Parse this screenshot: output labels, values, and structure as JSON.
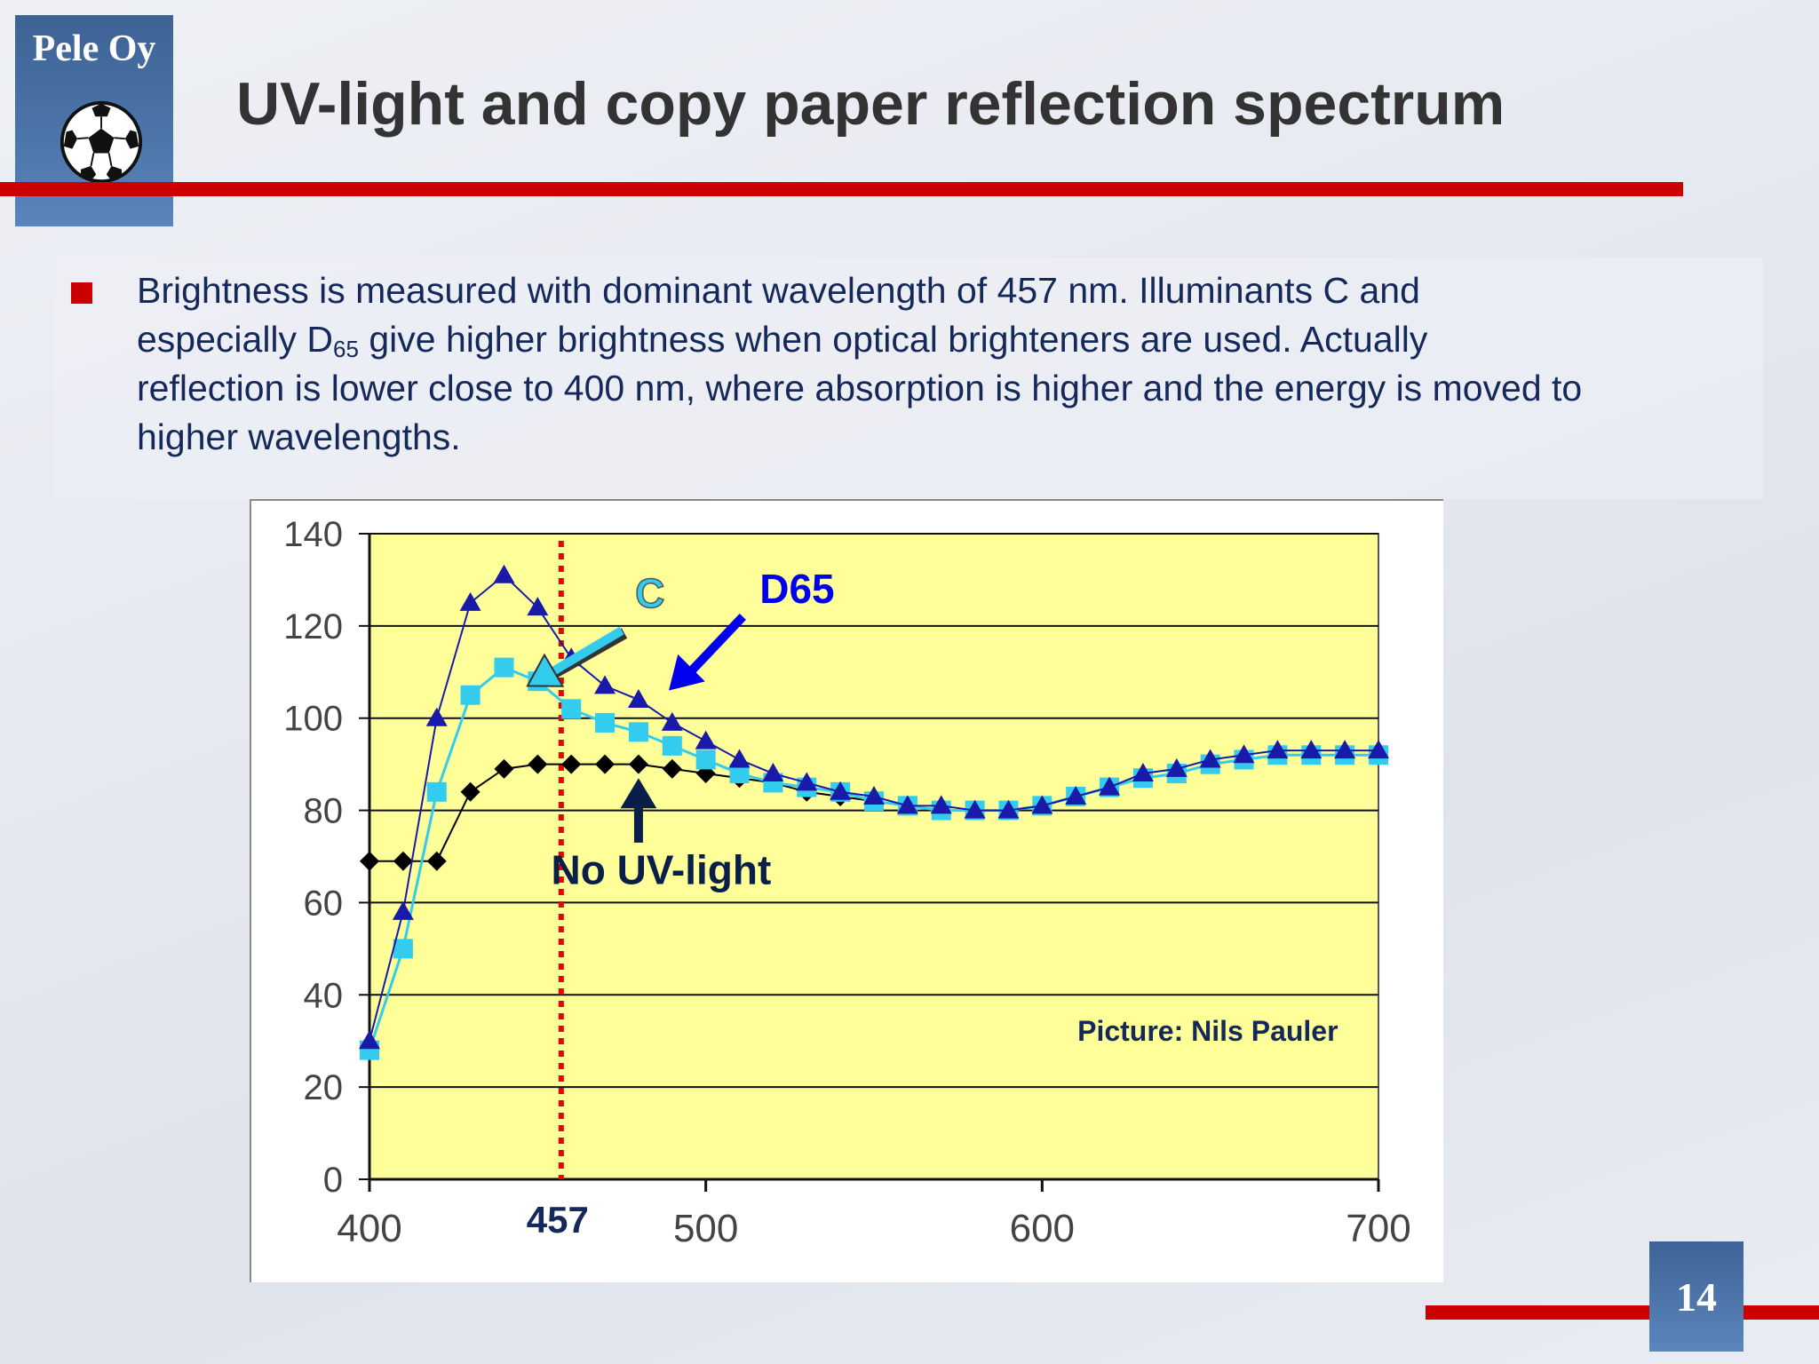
{
  "logo": {
    "text": "Pele Oy",
    "icon": "soccer-ball-icon"
  },
  "title": "UV-light and copy paper reflection spectrum",
  "bullet": {
    "line1": "Brightness is measured with dominant wavelength of 457 nm. Illuminants C and",
    "line2_pre": "especially D",
    "line2_sub": "65",
    "line2_post": " give higher brightness when optical brighteners are used. Actually",
    "line3": "reflection is lower close to 400 nm, where absorption is higher and the energy is moved to",
    "line4": "higher wavelengths."
  },
  "page_number": "14",
  "colors": {
    "accent_red": "#cc0000",
    "brand_blue": "#4a72a6",
    "title_text": "#333333",
    "body_text": "#14285a",
    "plot_background": "#ffff99",
    "series_no_uv": "#000000",
    "series_c": "#33ccee",
    "series_d65": "#1a1aaa",
    "marker_line": "#ee0000",
    "arrow_c": "#33ccee",
    "arrow_d65": "#0000ee",
    "arrow_no_uv": "#0a1e4a"
  },
  "chart_data": {
    "type": "line",
    "x": [
      400,
      410,
      420,
      430,
      440,
      450,
      460,
      470,
      480,
      490,
      500,
      510,
      520,
      530,
      540,
      550,
      560,
      570,
      580,
      590,
      600,
      610,
      620,
      630,
      640,
      650,
      660,
      670,
      680,
      690,
      700
    ],
    "series": [
      {
        "name": "No UV-light",
        "marker": "diamond",
        "values": [
          69,
          69,
          69,
          84,
          89,
          90,
          90,
          90,
          90,
          89,
          88,
          87,
          86,
          84,
          83,
          82,
          81,
          80,
          80,
          80,
          81,
          83,
          85,
          87,
          88,
          90,
          91,
          92,
          92,
          92,
          92
        ]
      },
      {
        "name": "C",
        "marker": "square",
        "values": [
          28,
          50,
          84,
          105,
          111,
          108,
          102,
          99,
          97,
          94,
          91,
          88,
          86,
          85,
          84,
          82,
          81,
          80,
          80,
          80,
          81,
          83,
          85,
          87,
          88,
          90,
          91,
          92,
          92,
          92,
          92
        ]
      },
      {
        "name": "D65",
        "marker": "triangle",
        "values": [
          30,
          58,
          100,
          125,
          131,
          124,
          113,
          107,
          104,
          99,
          95,
          91,
          88,
          86,
          84,
          83,
          81,
          81,
          80,
          80,
          81,
          83,
          85,
          88,
          89,
          91,
          92,
          93,
          93,
          93,
          93
        ]
      }
    ],
    "x_ticks": [
      400,
      500,
      600,
      700
    ],
    "y_ticks": [
      0,
      20,
      40,
      60,
      80,
      100,
      120,
      140
    ],
    "xlim": [
      400,
      700
    ],
    "ylim": [
      0,
      140
    ],
    "grid": "horizontal",
    "marker_line": {
      "x": 457,
      "label": "457"
    },
    "annotations": {
      "c": "C",
      "d65": "D65",
      "no_uv": "No UV-light",
      "credit": "Picture: Nils Pauler"
    }
  }
}
